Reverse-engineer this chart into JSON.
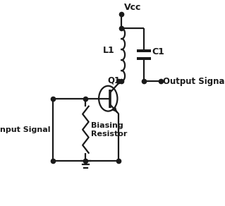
{
  "background_color": "#ffffff",
  "line_color": "#1a1a1a",
  "text_color": "#1a1a1a",
  "components": {
    "VCC_label": "Vcc",
    "L1_label": "L1",
    "C1_label": "C1",
    "Q1_label": "Q1",
    "biasing_label": "Biasing\nResistor",
    "input_label": "Input Signal",
    "output_label": "Output Signal"
  },
  "figsize": [
    3.19,
    2.92
  ],
  "dpi": 100
}
